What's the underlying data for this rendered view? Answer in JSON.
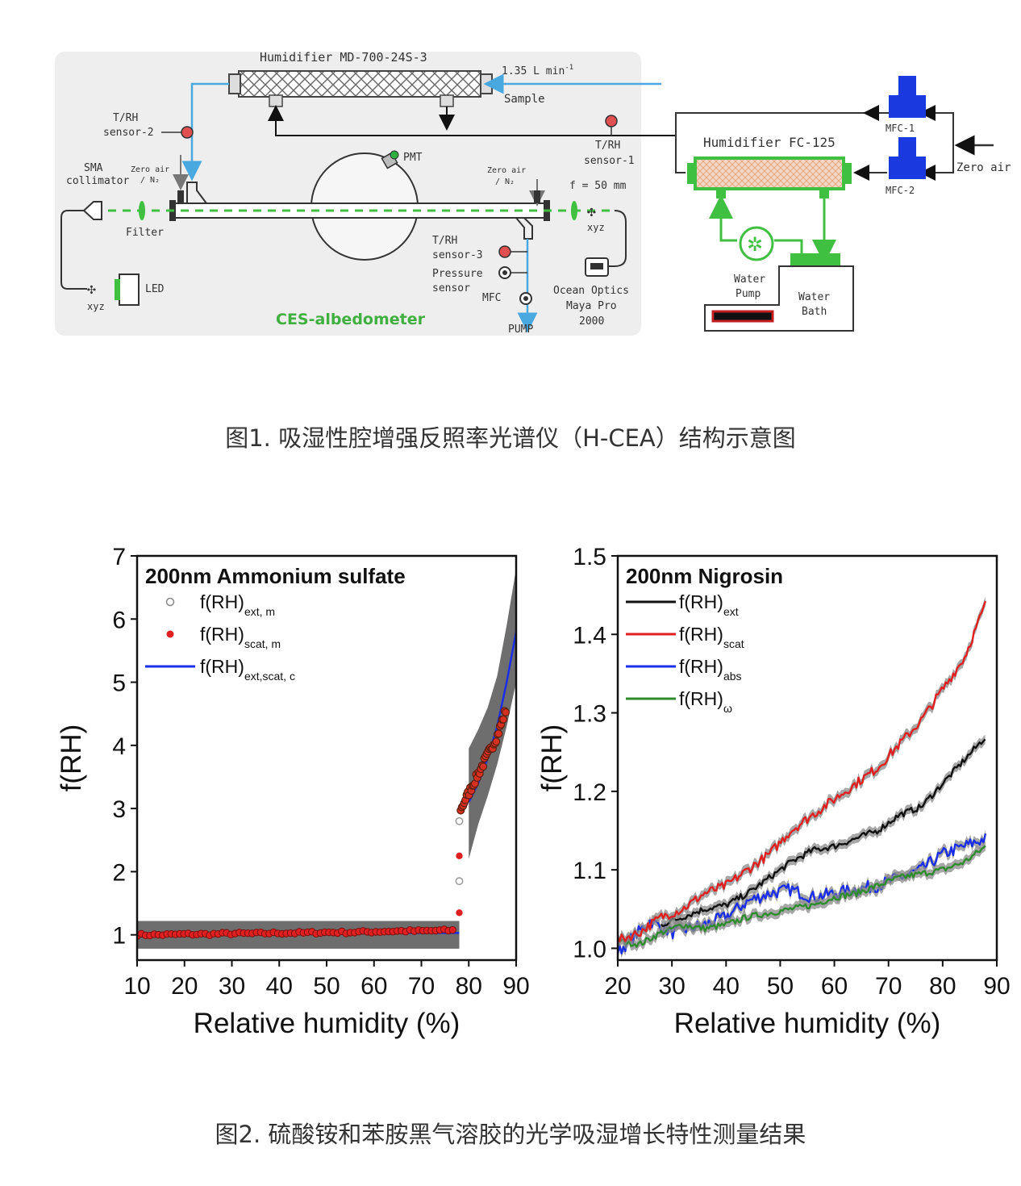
{
  "figure1": {
    "caption": "图1. 吸湿性腔增强反照率光谱仪（H-CEA）结构示意图",
    "labels": {
      "humidifier_md": "Humidifier  MD-700-24S-3",
      "flow": "1.35 L min",
      "flow_exp": "-1",
      "sample": "Sample",
      "trh2_a": "T/RH",
      "trh2_b": "sensor-2",
      "trh1_a": "T/RH",
      "trh1_b": "sensor-1",
      "pmt": "PMT",
      "sma_a": "SMA",
      "sma_b": "collimator",
      "zero_air_l_a": "Zero air",
      "zero_air_l_b": "/ N₂",
      "zero_air_r_a": "Zero air",
      "zero_air_r_b": "/ N₂",
      "f50": "f = 50 mm",
      "filter": "Filter",
      "xyz_r": "xyz",
      "xyz_l": "xyz",
      "led": "LED",
      "trh3_a": "T/RH",
      "trh3_b": "sensor-3",
      "pressure_a": "Pressure",
      "pressure_b": "sensor",
      "mfc": "MFC",
      "pump": "PUMP",
      "ocean_a": "Ocean Optics",
      "ocean_b": "Maya Pro",
      "ocean_c": "2000",
      "ces": "CES-albedometer",
      "humidifier_fc": "Humidifier  FC-125",
      "mfc1": "MFC-1",
      "mfc2": "MFC-2",
      "zero_air": "Zero air",
      "water_pump_a": "Water",
      "water_pump_b": "Pump",
      "water_bath_a": "Water",
      "water_bath_b": "Bath"
    }
  },
  "figure2": {
    "caption": "图2. 硫酸铵和苯胺黑气溶胶的光学吸湿增长特性测量结果"
  },
  "chart_data": [
    {
      "type": "scatter",
      "title": "200nm Ammonium sulfate",
      "xlabel": "Relative humidity (%)",
      "ylabel": "f(RH)",
      "xlim": [
        10,
        90
      ],
      "ylim": [
        0.6,
        7
      ],
      "xticks": [
        "10",
        "20",
        "30",
        "40",
        "50",
        "60",
        "70",
        "80",
        "90"
      ],
      "yticks": [
        "1",
        "2",
        "3",
        "4",
        "5",
        "6",
        "7"
      ],
      "legend": [
        {
          "base": "f(RH)",
          "sub": "ext, m",
          "marker": "open-circle",
          "color": "#888888"
        },
        {
          "base": "f(RH)",
          "sub": "scat, m",
          "marker": "filled-circle",
          "color": "#e02020"
        },
        {
          "base": "f(RH)",
          "sub": "ext,scat, c",
          "marker": "line",
          "color": "#1a2ee8"
        }
      ],
      "series": [
        {
          "name": "f(RH)ext, m",
          "x": [
            78,
            78,
            78,
            78.5,
            79,
            80,
            82,
            84,
            86,
            88
          ],
          "y": [
            1.05,
            1.85,
            2.8,
            3.0,
            3.1,
            3.25,
            3.55,
            3.85,
            4.15,
            4.5
          ]
        },
        {
          "name": "f(RH)scat, m",
          "x": [
            10,
            15,
            20,
            25,
            30,
            35,
            40,
            45,
            50,
            55,
            60,
            65,
            70,
            75,
            77,
            78,
            78,
            78,
            78.5,
            79,
            80,
            82,
            84,
            86,
            88
          ],
          "y": [
            1.0,
            1.0,
            1.01,
            1.01,
            1.02,
            1.02,
            1.03,
            1.03,
            1.04,
            1.04,
            1.05,
            1.06,
            1.06,
            1.07,
            1.1,
            1.35,
            2.25,
            2.95,
            3.0,
            3.1,
            3.25,
            3.55,
            3.85,
            4.15,
            4.6
          ]
        },
        {
          "name": "f(RH)ext,scat, c",
          "x": [
            10,
            30,
            50,
            70,
            78,
            80,
            82,
            84,
            86,
            88,
            90
          ],
          "y": [
            1.0,
            1.01,
            1.02,
            1.03,
            1.03,
            3.1,
            3.4,
            3.8,
            4.3,
            5.0,
            5.8
          ]
        }
      ],
      "bands": [
        {
          "x": [
            10,
            78
          ],
          "lower": [
            0.78,
            0.78
          ],
          "upper": [
            1.22,
            1.22
          ]
        },
        {
          "x": [
            80,
            82,
            84,
            86,
            88,
            90
          ],
          "lower": [
            2.2,
            2.75,
            3.2,
            3.7,
            4.3,
            5.0
          ],
          "upper": [
            3.95,
            4.25,
            4.6,
            5.1,
            5.9,
            6.8
          ]
        }
      ]
    },
    {
      "type": "line",
      "title": "200nm Nigrosin",
      "xlabel": "Relative humidity (%)",
      "ylabel": "f(RH)",
      "xlim": [
        20,
        90
      ],
      "ylim": [
        0.985,
        1.5
      ],
      "xticks": [
        "20",
        "30",
        "40",
        "50",
        "60",
        "70",
        "80",
        "90"
      ],
      "yticks": [
        "1.0",
        "1.1",
        "1.2",
        "1.3",
        "1.4",
        "1.5"
      ],
      "legend": [
        {
          "base": "f(RH)",
          "sub": "ext",
          "color": "#111111"
        },
        {
          "base": "f(RH)",
          "sub": "scat",
          "color": "#e02020"
        },
        {
          "base": "f(RH)",
          "sub": "abs",
          "color": "#1a2ee8"
        },
        {
          "base": "f(RH)",
          "sub": "ω",
          "color": "#2e8b2e"
        }
      ],
      "series": [
        {
          "name": "f(RH)ext",
          "x": [
            28,
            32,
            36,
            40,
            44,
            48,
            52,
            56,
            60,
            64,
            68,
            72,
            76,
            80,
            84,
            88
          ],
          "y": [
            1.03,
            1.04,
            1.05,
            1.055,
            1.07,
            1.09,
            1.11,
            1.125,
            1.13,
            1.14,
            1.15,
            1.17,
            1.18,
            1.21,
            1.24,
            1.27
          ]
        },
        {
          "name": "f(RH)scat",
          "x": [
            20,
            24,
            28,
            32,
            36,
            40,
            44,
            48,
            52,
            56,
            60,
            64,
            68,
            72,
            76,
            80,
            84,
            88
          ],
          "y": [
            1.01,
            1.02,
            1.04,
            1.05,
            1.07,
            1.08,
            1.1,
            1.12,
            1.15,
            1.17,
            1.19,
            1.21,
            1.23,
            1.26,
            1.29,
            1.33,
            1.37,
            1.44
          ]
        },
        {
          "name": "f(RH)abs",
          "x": [
            20,
            26,
            30,
            36,
            40,
            44,
            48,
            52,
            56,
            60,
            64,
            68,
            72,
            76,
            80,
            84,
            88
          ],
          "y": [
            0.995,
            1.035,
            1.02,
            1.03,
            1.04,
            1.06,
            1.07,
            1.075,
            1.065,
            1.07,
            1.075,
            1.08,
            1.09,
            1.1,
            1.12,
            1.13,
            1.14
          ]
        },
        {
          "name": "f(RH)ω",
          "x": [
            20,
            24,
            28,
            32,
            36,
            40,
            44,
            48,
            52,
            56,
            60,
            64,
            68,
            72,
            76,
            80,
            84,
            88
          ],
          "y": [
            1.01,
            1.005,
            1.02,
            1.03,
            1.025,
            1.03,
            1.04,
            1.045,
            1.05,
            1.055,
            1.065,
            1.07,
            1.08,
            1.09,
            1.095,
            1.1,
            1.11,
            1.13
          ]
        }
      ]
    }
  ]
}
